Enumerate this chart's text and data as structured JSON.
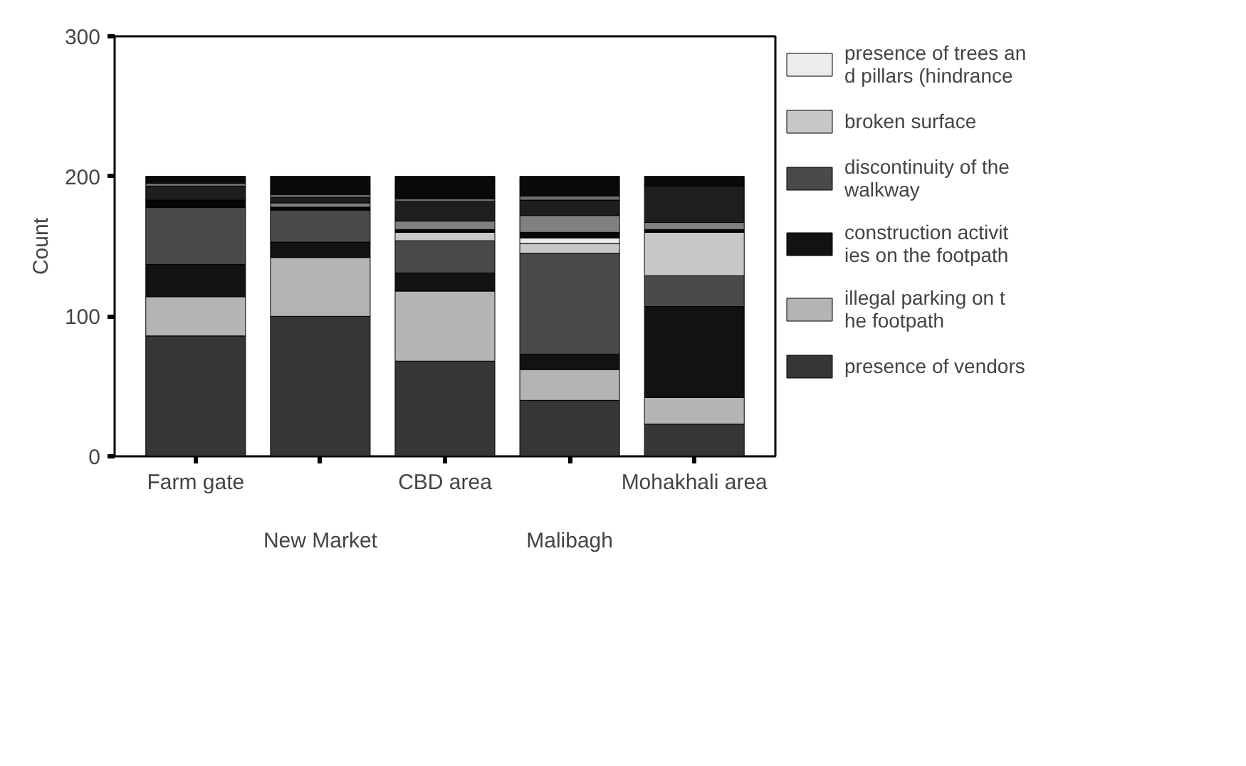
{
  "chart_data": {
    "type": "bar",
    "stacked": true,
    "ylabel": "Count",
    "categories": [
      "Farm gate",
      "New Market",
      "CBD area",
      "Malibagh",
      "Mohakhali area"
    ],
    "ylim": [
      0,
      300
    ],
    "yticks": [
      0,
      100,
      200,
      300
    ],
    "grid": false,
    "legend": "right",
    "series": [
      {
        "name": "presence of vendors",
        "color": "#363636",
        "values": [
          86,
          100,
          68,
          40,
          23
        ]
      },
      {
        "name": "illegal parking on the footpath",
        "color": "#b4b4b4",
        "values": [
          28,
          42,
          50,
          22,
          19
        ]
      },
      {
        "name": "construction activities on the footpath",
        "color": "#121212",
        "values": [
          23,
          11,
          13,
          11,
          65
        ]
      },
      {
        "name": "discontinuity of the walkway",
        "color": "#4a4a4a",
        "values": [
          41,
          23,
          23,
          72,
          22
        ]
      },
      {
        "name": "broken surface",
        "color": "#c8c8c8",
        "values": [
          0,
          0,
          6,
          7,
          31
        ]
      },
      {
        "name": "presence of trees and pillars (hindrance",
        "color": "#ececec",
        "values": [
          0,
          0,
          0,
          4,
          0
        ]
      },
      {
        "color": "#050505",
        "values": [
          5,
          2,
          2,
          4,
          2
        ]
      },
      {
        "color": "#808080",
        "values": [
          0,
          3,
          6,
          12,
          5
        ]
      },
      {
        "color": "#1e1e1e",
        "values": [
          10,
          4,
          14,
          11,
          26
        ]
      },
      {
        "color": "#6e6e6e",
        "values": [
          2,
          2,
          2,
          3,
          0
        ]
      },
      {
        "color": "#0a0a0a",
        "values": [
          5,
          13,
          16,
          14,
          7
        ]
      }
    ]
  }
}
